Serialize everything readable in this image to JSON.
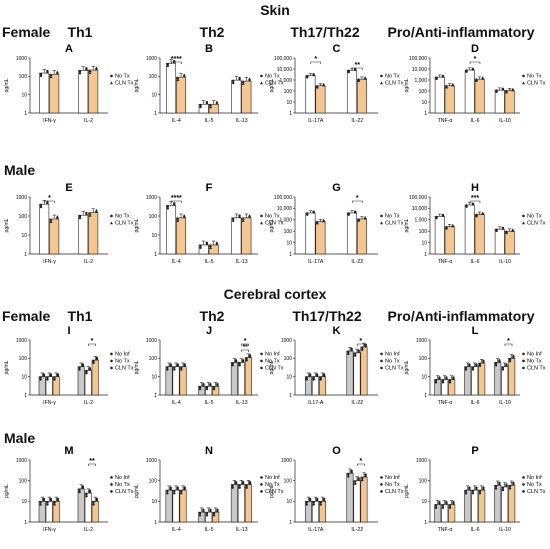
{
  "section_titles": {
    "skin": "Skin",
    "brain": "Cerebral cortex"
  },
  "row_labels": {
    "r1": "Female",
    "r2": "Male",
    "r3": "Female",
    "r4": "Male"
  },
  "col_headers": [
    "Th1",
    "Th2",
    "Th17/Th22",
    "Pro/Anti-inflammatory"
  ],
  "y_unit": "pg/mL",
  "colors": {
    "orange": "#f6c68f",
    "grey": "#c9c9c9",
    "white": "#ffffff",
    "stroke": "#222222"
  },
  "legends": {
    "skin": [
      "No Tx",
      "CLN Tx"
    ],
    "brain": [
      "No Inf",
      "No Tx",
      "CLN Tx"
    ]
  },
  "chart_data": [
    {
      "panel": "A",
      "type": "bar",
      "scale": "log",
      "ylim": [
        1,
        1000
      ],
      "ticks": [
        "1",
        "10",
        "100",
        "1000"
      ],
      "categories": [
        "IFN-γ",
        "IL-2"
      ],
      "series": [
        {
          "name": "No Tx",
          "values": [
            150,
            210
          ]
        },
        {
          "name": "CLN Tx",
          "values": [
            130,
            220
          ]
        }
      ],
      "sig": []
    },
    {
      "panel": "B",
      "type": "bar",
      "scale": "log",
      "ylim": [
        1,
        1000
      ],
      "ticks": [
        "1",
        "10",
        "100",
        "1000"
      ],
      "categories": [
        "IL-4",
        "IL-5",
        "IL-13"
      ],
      "series": [
        {
          "name": "No Tx",
          "values": [
            520,
            3,
            62
          ]
        },
        {
          "name": "CLN Tx",
          "values": [
            90,
            3,
            55
          ]
        }
      ],
      "sig": [
        {
          "cat": 0,
          "label": "****"
        }
      ]
    },
    {
      "panel": "C",
      "type": "bar",
      "scale": "log",
      "ylim": [
        1,
        100000
      ],
      "ticks": [
        "1",
        "10",
        "100",
        "1,000",
        "10,000",
        "100,000"
      ],
      "categories": [
        "IL-17A",
        "IL-22"
      ],
      "series": [
        {
          "name": "No Tx",
          "values": [
            2500,
            7500
          ]
        },
        {
          "name": "CLN Tx",
          "values": [
            300,
            1200
          ]
        }
      ],
      "sig": [
        {
          "cat": 0,
          "label": "*"
        },
        {
          "cat": 1,
          "label": "**"
        }
      ]
    },
    {
      "panel": "D",
      "type": "bar",
      "scale": "log",
      "ylim": [
        1,
        100000
      ],
      "ticks": [
        "1",
        "10",
        "100",
        "1,000",
        "10,000",
        "100,000"
      ],
      "categories": [
        "TNF-α",
        "IL-6",
        "IL-10"
      ],
      "series": [
        {
          "name": "No Tx",
          "values": [
            1800,
            8000,
            120
          ]
        },
        {
          "name": "CLN Tx",
          "values": [
            300,
            1200,
            110
          ]
        }
      ],
      "sig": [
        {
          "cat": 1,
          "label": "*"
        }
      ]
    },
    {
      "panel": "E",
      "type": "bar",
      "scale": "log",
      "ylim": [
        1,
        1000
      ],
      "ticks": [
        "1",
        "10",
        "100",
        "1000"
      ],
      "categories": [
        "IFN-γ",
        "IL-2"
      ],
      "series": [
        {
          "name": "No Tx",
          "values": [
            420,
            110
          ]
        },
        {
          "name": "CLN Tx",
          "values": [
            70,
            150
          ]
        }
      ],
      "sig": [
        {
          "cat": 0,
          "label": "*"
        }
      ]
    },
    {
      "panel": "F",
      "type": "bar",
      "scale": "log",
      "ylim": [
        1,
        1000
      ],
      "ticks": [
        "1",
        "10",
        "100",
        "1000"
      ],
      "categories": [
        "IL-4",
        "IL-5",
        "IL-13"
      ],
      "series": [
        {
          "name": "No Tx",
          "values": [
            360,
            3,
            80
          ]
        },
        {
          "name": "CLN Tx",
          "values": [
            80,
            3,
            80
          ]
        }
      ],
      "sig": [
        {
          "cat": 0,
          "label": "****"
        }
      ]
    },
    {
      "panel": "G",
      "type": "bar",
      "scale": "log",
      "ylim": [
        1,
        100000
      ],
      "ticks": [
        "1",
        "10",
        "100",
        "1,000",
        "10,000",
        "100,000"
      ],
      "categories": [
        "IL-17A",
        "IL-22"
      ],
      "series": [
        {
          "name": "No Tx",
          "values": [
            4000,
            4000
          ]
        },
        {
          "name": "CLN Tx",
          "values": [
            700,
            1200
          ]
        }
      ],
      "sig": [
        {
          "cat": 1,
          "label": "*"
        }
      ]
    },
    {
      "panel": "H",
      "type": "bar",
      "scale": "log",
      "ylim": [
        1,
        100000
      ],
      "ticks": [
        "1",
        "10",
        "100",
        "1,000",
        "10,000",
        "100,000"
      ],
      "categories": [
        "TNF-α",
        "IL-6",
        "IL-10"
      ],
      "series": [
        {
          "name": "No Tx",
          "values": [
            2000,
            20000,
            150
          ]
        },
        {
          "name": "CLN Tx",
          "values": [
            250,
            3000,
            100
          ]
        }
      ],
      "sig": [
        {
          "cat": 1,
          "label": "***"
        }
      ]
    },
    {
      "panel": "I",
      "type": "bar",
      "scale": "log",
      "ylim": [
        1,
        1000
      ],
      "ticks": [
        "1",
        "10",
        "100",
        "1000"
      ],
      "categories": [
        "IFN-γ",
        "IL-2"
      ],
      "series": [
        {
          "name": "No Inf",
          "values": [
            10,
            35
          ]
        },
        {
          "name": "No Tx",
          "values": [
            10,
            22
          ]
        },
        {
          "name": "CLN Tx",
          "values": [
            10,
            80
          ]
        }
      ],
      "sig": [
        {
          "cat": 1,
          "label": "*"
        }
      ]
    },
    {
      "panel": "J",
      "type": "bar",
      "scale": "log",
      "ylim": [
        1,
        1000
      ],
      "ticks": [
        "1",
        "10",
        "100",
        "1000"
      ],
      "categories": [
        "IL-4",
        "IL-5",
        "IL-13"
      ],
      "series": [
        {
          "name": "No Inf",
          "values": [
            35,
            3,
            60
          ]
        },
        {
          "name": "No Tx",
          "values": [
            35,
            3,
            60
          ]
        },
        {
          "name": "CLN Tx",
          "values": [
            35,
            3,
            110
          ]
        }
      ],
      "sig": [
        {
          "cat": 2,
          "label": "*"
        },
        {
          "cat": 2,
          "label": "**"
        }
      ]
    },
    {
      "panel": "K",
      "type": "bar",
      "scale": "log",
      "ylim": [
        1,
        1000
      ],
      "ticks": [
        "1",
        "10",
        "100",
        "1000"
      ],
      "categories": [
        "IL17-A",
        "IL-22"
      ],
      "series": [
        {
          "name": "No Inf",
          "values": [
            10,
            250
          ]
        },
        {
          "name": "No Tx",
          "values": [
            10,
            200
          ]
        },
        {
          "name": "CLN Tx",
          "values": [
            10,
            420
          ]
        }
      ],
      "sig": [
        {
          "cat": 1,
          "label": "*"
        }
      ]
    },
    {
      "panel": "L",
      "type": "bar",
      "scale": "log",
      "ylim": [
        1,
        1000
      ],
      "ticks": [
        "1",
        "10",
        "100",
        "1000"
      ],
      "categories": [
        "TNF-α",
        "IL-6",
        "IL-10"
      ],
      "series": [
        {
          "name": "No Inf",
          "values": [
            7,
            35,
            60
          ]
        },
        {
          "name": "No Tx",
          "values": [
            7,
            35,
            35
          ]
        },
        {
          "name": "CLN Tx",
          "values": [
            7,
            55,
            100
          ]
        }
      ],
      "sig": [
        {
          "cat": 2,
          "label": "*"
        }
      ]
    },
    {
      "panel": "M",
      "type": "bar",
      "scale": "log",
      "ylim": [
        1,
        1000
      ],
      "ticks": [
        "1",
        "10",
        "100",
        "1000"
      ],
      "categories": [
        "IFN-γ",
        "IL-2"
      ],
      "series": [
        {
          "name": "No Inf",
          "values": [
            10,
            40
          ]
        },
        {
          "name": "No Tx",
          "values": [
            10,
            25
          ]
        },
        {
          "name": "CLN Tx",
          "values": [
            10,
            10
          ]
        }
      ],
      "sig": [
        {
          "cat": 1,
          "label": "**"
        }
      ]
    },
    {
      "panel": "N",
      "type": "bar",
      "scale": "log",
      "ylim": [
        1,
        1000
      ],
      "ticks": [
        "1",
        "10",
        "100",
        "1000"
      ],
      "categories": [
        "IL-4",
        "IL-5",
        "IL-13"
      ],
      "series": [
        {
          "name": "No Inf",
          "values": [
            35,
            3,
            65
          ]
        },
        {
          "name": "No Tx",
          "values": [
            35,
            3,
            65
          ]
        },
        {
          "name": "CLN Tx",
          "values": [
            35,
            3,
            65
          ]
        }
      ],
      "sig": []
    },
    {
      "panel": "O",
      "type": "bar",
      "scale": "log",
      "ylim": [
        1,
        1000
      ],
      "ticks": [
        "1",
        "10",
        "100",
        "1000"
      ],
      "categories": [
        "IL-17A",
        "IL-22"
      ],
      "series": [
        {
          "name": "No Inf",
          "values": [
            10,
            230
          ]
        },
        {
          "name": "No Tx",
          "values": [
            10,
            100
          ]
        },
        {
          "name": "CLN Tx",
          "values": [
            10,
            150
          ]
        }
      ],
      "sig": [
        {
          "cat": 1,
          "label": "*"
        }
      ]
    },
    {
      "panel": "P",
      "type": "bar",
      "scale": "log",
      "ylim": [
        1,
        1000
      ],
      "ticks": [
        "1",
        "10",
        "100",
        "1000"
      ],
      "categories": [
        "TNF-α",
        "IL-6",
        "IL-10"
      ],
      "series": [
        {
          "name": "No Inf",
          "values": [
            7,
            35,
            60
          ]
        },
        {
          "name": "No Tx",
          "values": [
            7,
            35,
            50
          ]
        },
        {
          "name": "CLN Tx",
          "values": [
            7,
            35,
            60
          ]
        }
      ],
      "sig": []
    }
  ]
}
